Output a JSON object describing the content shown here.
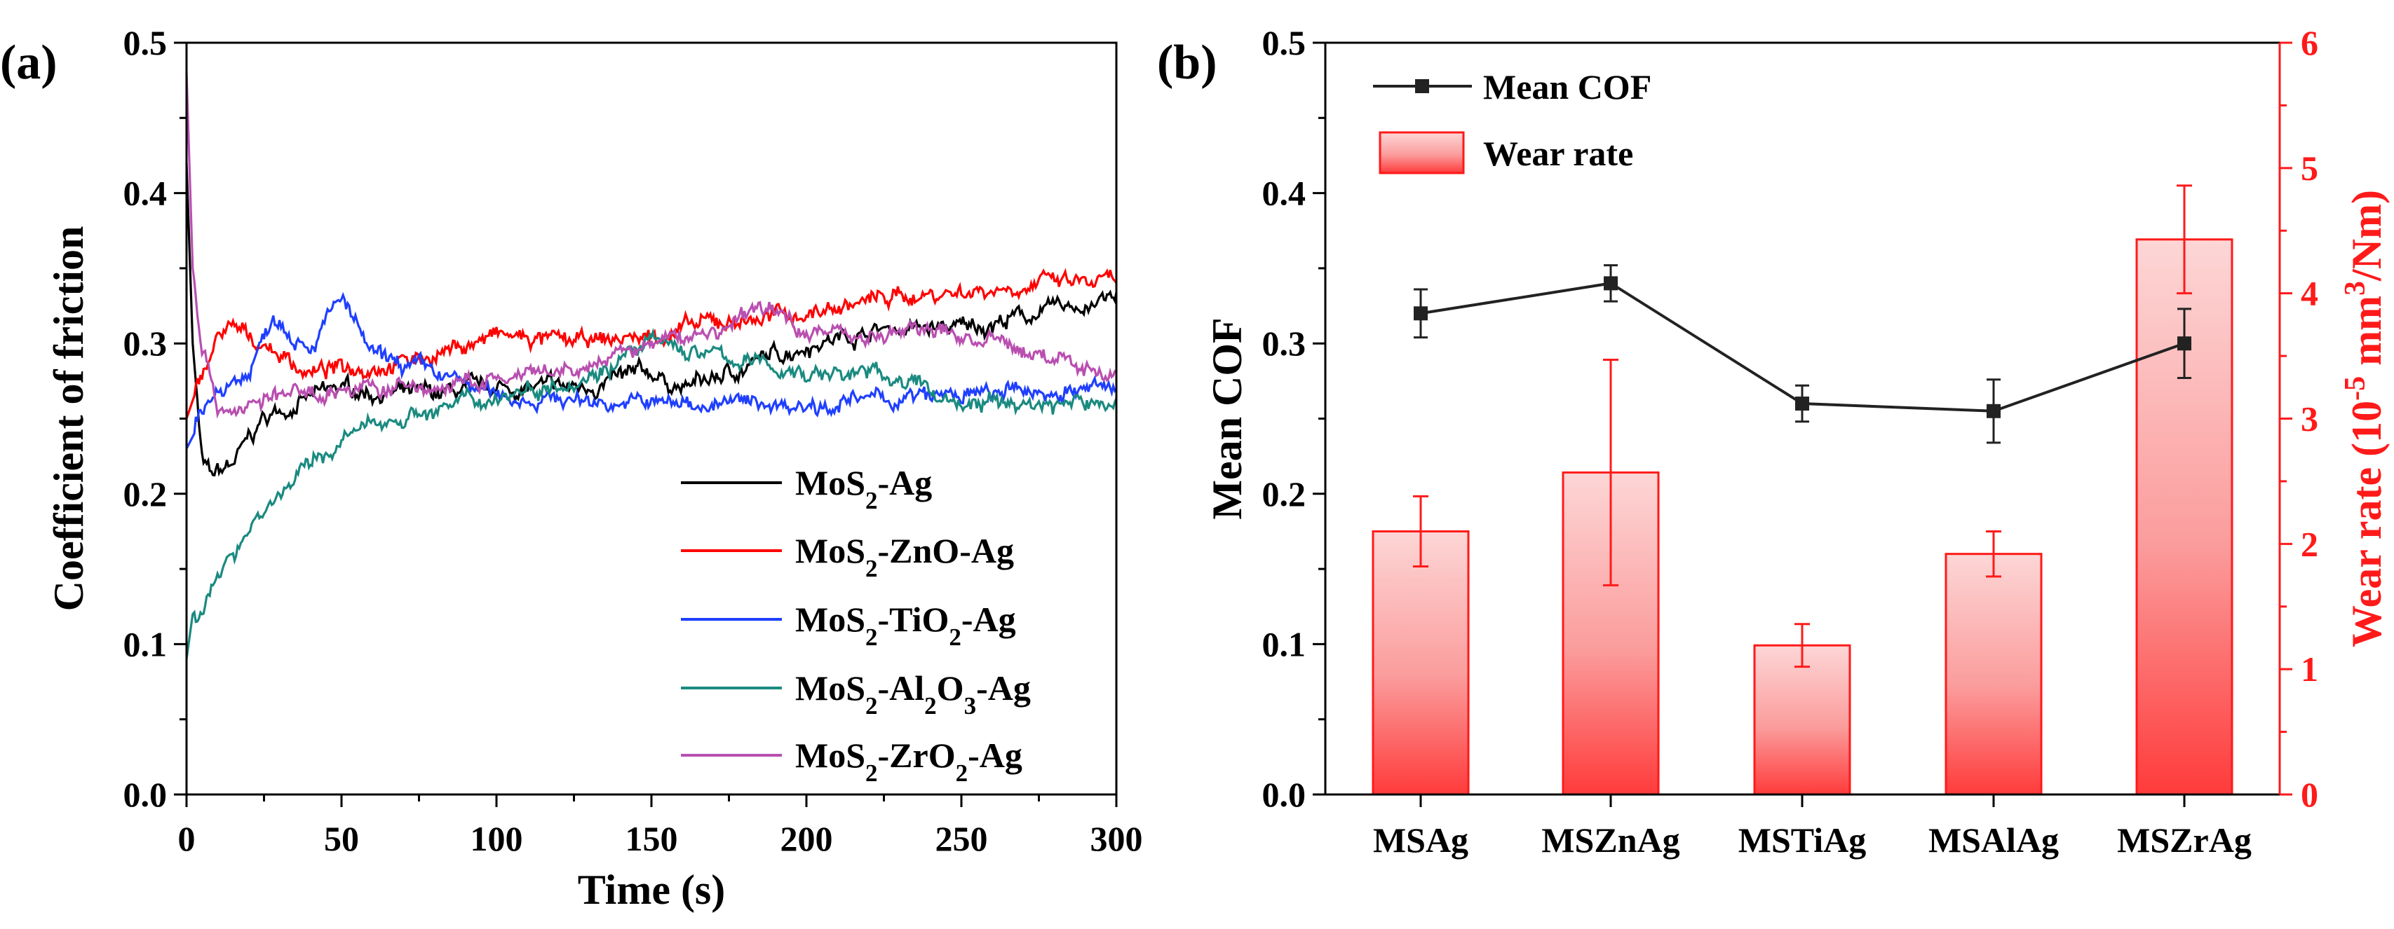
{
  "chart_data": [
    {
      "panel_label": "(a)",
      "type": "line",
      "xlabel": "Time (s)",
      "ylabel": "Coefficient of friction",
      "xlim": [
        0,
        300
      ],
      "ylim": [
        0,
        0.5
      ],
      "xticks": [
        "0",
        "50",
        "100",
        "150",
        "200",
        "250",
        "300"
      ],
      "yticks": [
        "0.0",
        "0.1",
        "0.2",
        "0.3",
        "0.4",
        "0.5"
      ],
      "grid": false,
      "legend_position": "bottom-right",
      "series": [
        {
          "name": "MoS2-Ag",
          "label_main": "MoS",
          "label_sub": "2",
          "label_rest": "-Ag",
          "color": "#000000",
          "points": [
            [
              0,
              0.42
            ],
            [
              2,
              0.3
            ],
            [
              5,
              0.22
            ],
            [
              8,
              0.21
            ],
            [
              15,
              0.22
            ],
            [
              25,
              0.25
            ],
            [
              35,
              0.26
            ],
            [
              50,
              0.27
            ],
            [
              75,
              0.265
            ],
            [
              100,
              0.27
            ],
            [
              125,
              0.27
            ],
            [
              150,
              0.28
            ],
            [
              160,
              0.27
            ],
            [
              175,
              0.28
            ],
            [
              200,
              0.3
            ],
            [
              225,
              0.31
            ],
            [
              250,
              0.31
            ],
            [
              275,
              0.32
            ],
            [
              300,
              0.33
            ]
          ]
        },
        {
          "name": "MoS2-ZnO-Ag",
          "label_main": "MoS",
          "label_sub": "2",
          "label_rest": "-ZnO-Ag",
          "color": "#ff0000",
          "points": [
            [
              0,
              0.25
            ],
            [
              5,
              0.28
            ],
            [
              12,
              0.31
            ],
            [
              25,
              0.3
            ],
            [
              40,
              0.28
            ],
            [
              55,
              0.285
            ],
            [
              75,
              0.29
            ],
            [
              100,
              0.305
            ],
            [
              125,
              0.3
            ],
            [
              150,
              0.305
            ],
            [
              175,
              0.315
            ],
            [
              200,
              0.32
            ],
            [
              225,
              0.33
            ],
            [
              250,
              0.335
            ],
            [
              275,
              0.34
            ],
            [
              300,
              0.34
            ]
          ]
        },
        {
          "name": "MoS2-TiO2-Ag",
          "label_main": "MoS",
          "label_sub": "2",
          "label_rest": "-TiO",
          "label_sub2": "2",
          "label_rest2": "-Ag",
          "color": "#1f3fff",
          "points": [
            [
              0,
              0.23
            ],
            [
              10,
              0.27
            ],
            [
              20,
              0.28
            ],
            [
              28,
              0.32
            ],
            [
              40,
              0.3
            ],
            [
              50,
              0.33
            ],
            [
              60,
              0.29
            ],
            [
              80,
              0.28
            ],
            [
              100,
              0.265
            ],
            [
              150,
              0.26
            ],
            [
              200,
              0.26
            ],
            [
              250,
              0.265
            ],
            [
              300,
              0.27
            ]
          ]
        },
        {
          "name": "MoS2-Al2O3-Ag",
          "label_main": "MoS",
          "label_sub": "2",
          "label_rest": "-Al",
          "label_sub2": "2",
          "label_rest2": "O",
          "label_sub3": "3",
          "label_rest3": "-Ag",
          "color": "#1a8a80",
          "points": [
            [
              0,
              0.09
            ],
            [
              2,
              0.12
            ],
            [
              10,
              0.14
            ],
            [
              20,
              0.18
            ],
            [
              35,
              0.21
            ],
            [
              50,
              0.235
            ],
            [
              65,
              0.25
            ],
            [
              90,
              0.26
            ],
            [
              110,
              0.27
            ],
            [
              130,
              0.28
            ],
            [
              150,
              0.3
            ],
            [
              175,
              0.29
            ],
            [
              200,
              0.28
            ],
            [
              225,
              0.28
            ],
            [
              250,
              0.26
            ],
            [
              300,
              0.26
            ]
          ]
        },
        {
          "name": "MoS2-ZrO2-Ag",
          "label_main": "MoS",
          "label_sub": "2",
          "label_rest": "-ZrO",
          "label_sub2": "2",
          "label_rest2": "-Ag",
          "color": "#b94fb0",
          "points": [
            [
              0,
              0.48
            ],
            [
              2,
              0.35
            ],
            [
              5,
              0.3
            ],
            [
              10,
              0.26
            ],
            [
              15,
              0.255
            ],
            [
              30,
              0.265
            ],
            [
              50,
              0.27
            ],
            [
              80,
              0.27
            ],
            [
              100,
              0.275
            ],
            [
              125,
              0.28
            ],
            [
              150,
              0.3
            ],
            [
              175,
              0.31
            ],
            [
              185,
              0.325
            ],
            [
              200,
              0.31
            ],
            [
              225,
              0.305
            ],
            [
              240,
              0.31
            ],
            [
              260,
              0.3
            ],
            [
              280,
              0.29
            ],
            [
              300,
              0.28
            ]
          ]
        }
      ]
    },
    {
      "panel_label": "(b)",
      "type": "bar+line",
      "categories": [
        "MSAg",
        "MSZnAg",
        "MSTiAg",
        "MSAlAg",
        "MSZrAg"
      ],
      "ylabel_left": "Mean COF",
      "ylabel_right_main": "Wear rate (10",
      "ylabel_right_sup1": "-5",
      "ylabel_right_mid": " mm",
      "ylabel_right_sup2": "3",
      "ylabel_right_end": "/Nm)",
      "ylim_left": [
        0,
        0.5
      ],
      "ylim_right": [
        0,
        6
      ],
      "yticks_left": [
        "0.0",
        "0.1",
        "0.2",
        "0.3",
        "0.4",
        "0.5"
      ],
      "yticks_right": [
        "0",
        "1",
        "2",
        "3",
        "4",
        "5",
        "6"
      ],
      "legend_position": "top-left",
      "mean_cof": {
        "name": "Mean COF",
        "color": "#222222",
        "values": [
          0.32,
          0.34,
          0.26,
          0.255,
          0.3
        ],
        "errors": [
          0.016,
          0.012,
          0.012,
          0.021,
          0.023
        ]
      },
      "wear_rate": {
        "name": "Wear rate",
        "color": "#ff1a1a",
        "values": [
          2.1,
          2.57,
          1.19,
          1.92,
          4.43
        ],
        "errors": [
          0.28,
          0.9,
          0.17,
          0.18,
          0.43
        ]
      }
    }
  ]
}
